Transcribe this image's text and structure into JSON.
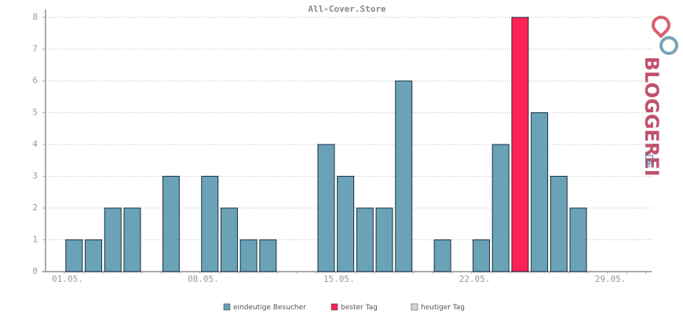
{
  "chart_data": {
    "type": "bar",
    "title": "All-Cover.Store",
    "categories": [
      "01.05.",
      null,
      null,
      null,
      null,
      null,
      null,
      "08.05.",
      null,
      null,
      null,
      null,
      null,
      null,
      "15.05.",
      null,
      null,
      null,
      null,
      null,
      null,
      "22.05.",
      null,
      null,
      null,
      null,
      null,
      null,
      "29.05.",
      null,
      null
    ],
    "series": [
      {
        "name": "eindeutige Besucher",
        "color": "#6aa2b8",
        "values": [
          1,
          1,
          2,
          2,
          0,
          3,
          0,
          3,
          2,
          1,
          1,
          0,
          0,
          4,
          3,
          2,
          2,
          6,
          0,
          1,
          0,
          1,
          4,
          null,
          5,
          3,
          2,
          0,
          0,
          0,
          0
        ]
      },
      {
        "name": "bester Tag",
        "color": "#ff2255",
        "values": [
          null,
          null,
          null,
          null,
          null,
          null,
          null,
          null,
          null,
          null,
          null,
          null,
          null,
          null,
          null,
          null,
          null,
          null,
          null,
          null,
          null,
          null,
          null,
          8,
          null,
          null,
          null,
          null,
          null,
          null,
          null
        ]
      },
      {
        "name": "heutiger Tag",
        "color": "#d4d4d4",
        "values": [
          null,
          null,
          null,
          null,
          null,
          null,
          null,
          null,
          null,
          null,
          null,
          null,
          null,
          null,
          null,
          null,
          null,
          null,
          null,
          null,
          null,
          null,
          null,
          null,
          null,
          null,
          null,
          null,
          null,
          null,
          null
        ]
      }
    ],
    "ylim": [
      0,
      8.25
    ],
    "yticks": [
      0,
      1,
      2,
      3,
      4,
      5,
      6,
      7,
      8
    ],
    "grid": true,
    "logo": {
      "main": "BLOGGEREI",
      "suffix": ".DE"
    }
  }
}
